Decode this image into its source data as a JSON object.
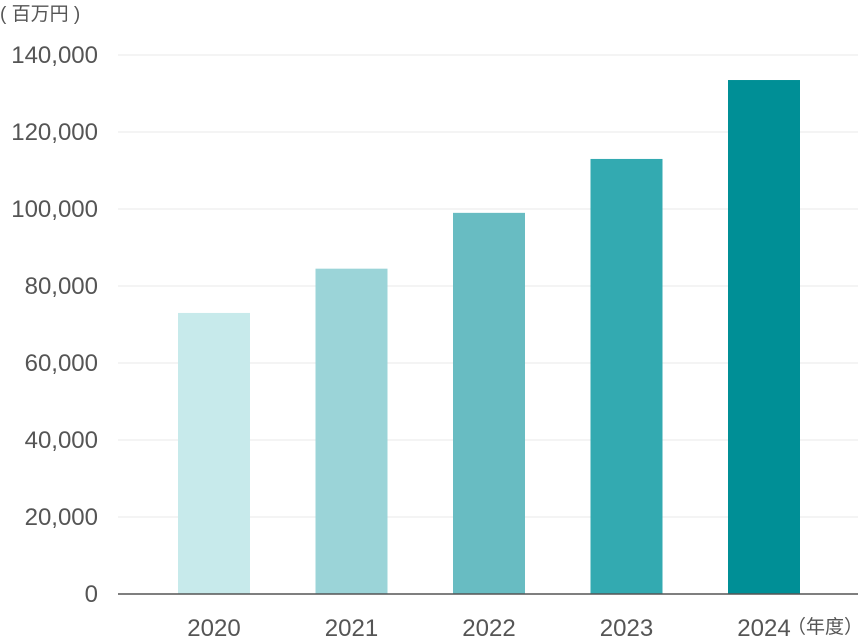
{
  "chart_data": {
    "type": "bar",
    "y_unit": "( 百万円 )",
    "x_unit": "（年度）",
    "categories": [
      "2020",
      "2021",
      "2022",
      "2023",
      "2024"
    ],
    "values": [
      73000,
      84500,
      99000,
      113000,
      133500
    ],
    "bar_colors": [
      "#c7eaeb",
      "#9bd4d8",
      "#68bcc2",
      "#33aab1",
      "#008f96"
    ],
    "ylim": [
      0,
      140000
    ],
    "yticks": [
      0,
      20000,
      40000,
      60000,
      80000,
      100000,
      120000,
      140000
    ],
    "ytick_labels": [
      "0",
      "20,000",
      "40,000",
      "60,000",
      "80,000",
      "100,000",
      "120,000",
      "140,000"
    ],
    "grid": true,
    "grid_color": "#e8e8e8",
    "axis_color": "#555555"
  }
}
